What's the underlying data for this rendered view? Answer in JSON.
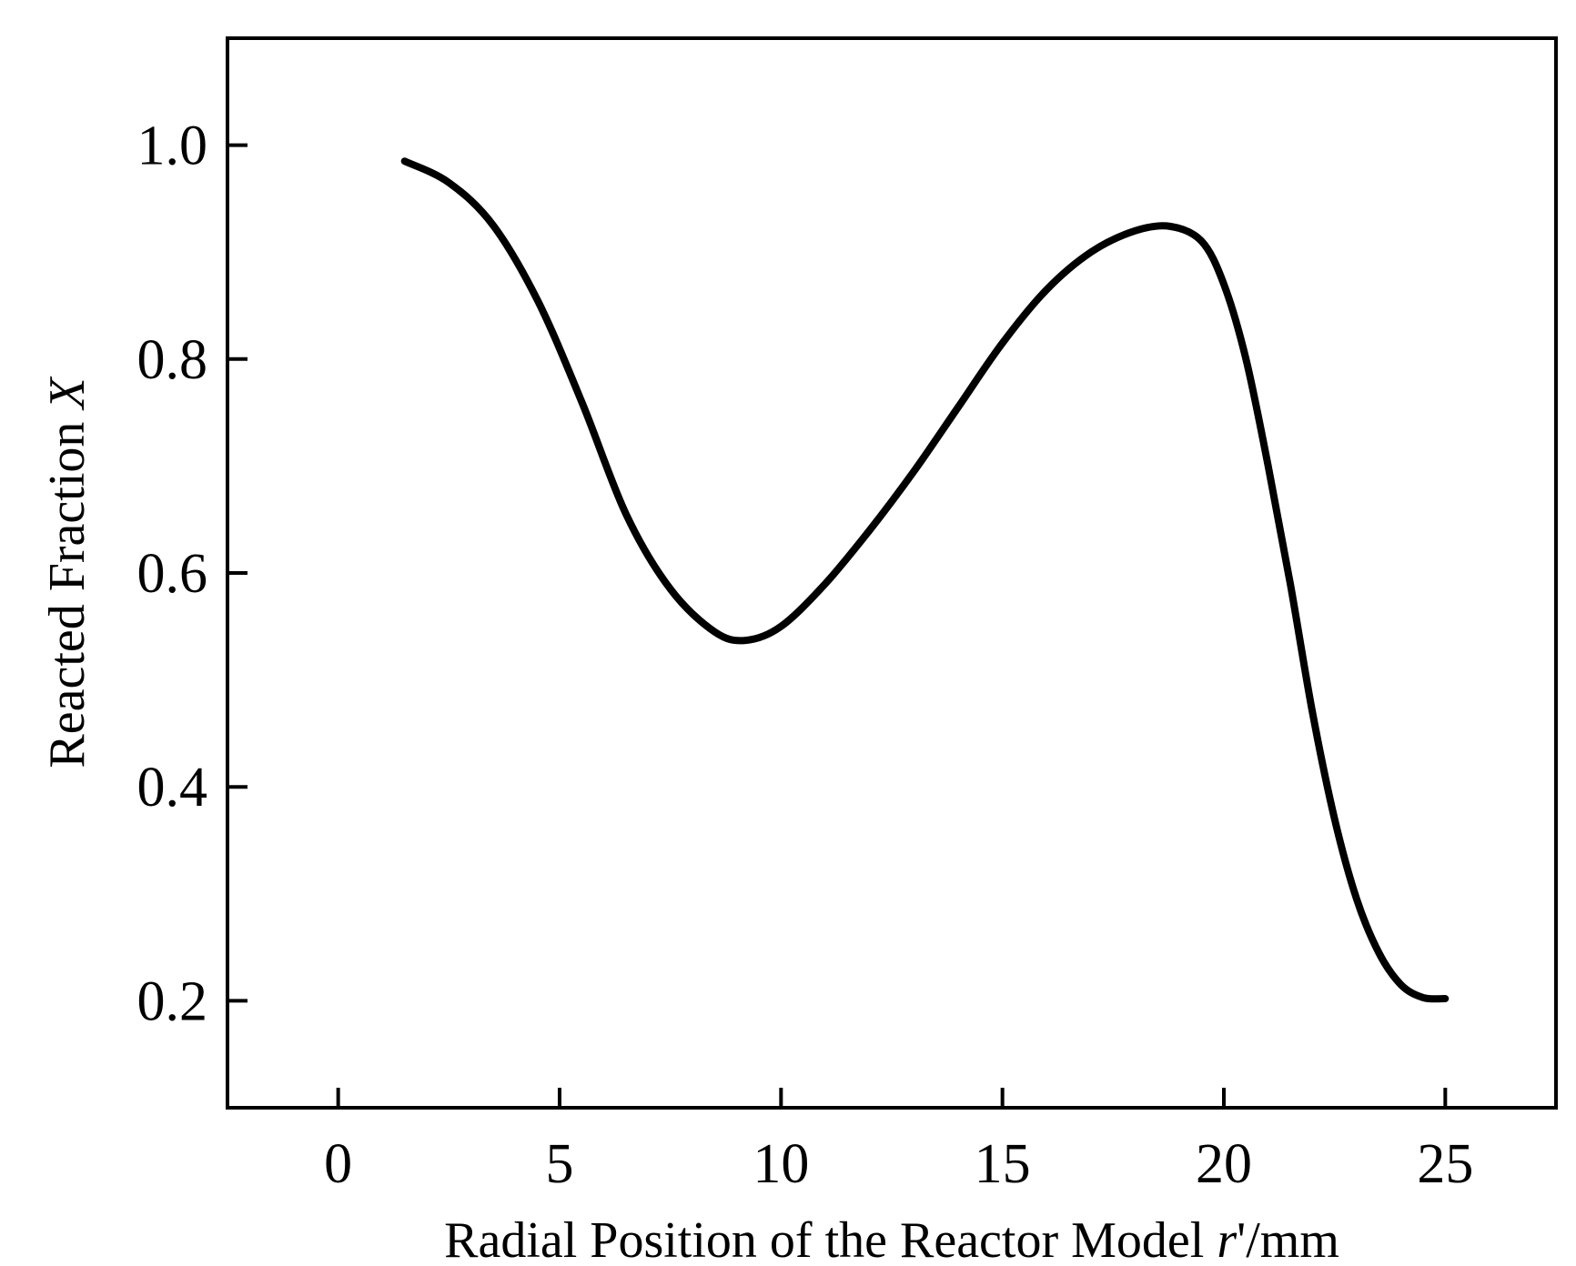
{
  "chart_data": {
    "type": "line",
    "title": "",
    "xlabel": {
      "text": "Radial Position of the Reactor Model ",
      "var": "r",
      "suffix": "'/mm"
    },
    "ylabel": {
      "text": "Reacted Fraction ",
      "var": "X"
    },
    "xlim": [
      -2.5,
      27.5
    ],
    "ylim": [
      0.1,
      1.1
    ],
    "x_ticks": [
      0,
      5,
      10,
      15,
      20,
      25
    ],
    "x_tick_labels": [
      "0",
      "5",
      "10",
      "15",
      "20",
      "25"
    ],
    "y_ticks": [
      0.2,
      0.4,
      0.6,
      0.8,
      1.0
    ],
    "y_tick_labels": [
      "0.2",
      "0.4",
      "0.6",
      "0.8",
      "1.0"
    ],
    "grid": false,
    "line_color": "#000000",
    "series": [
      {
        "x": [
          1.5,
          2.5,
          3.5,
          4.5,
          5.5,
          6.5,
          7.5,
          8.5,
          9.2,
          10.0,
          11.0,
          12.0,
          13.0,
          14.0,
          15.0,
          16.0,
          17.0,
          18.0,
          18.8,
          19.5,
          20.0,
          20.5,
          21.0,
          21.5,
          22.0,
          22.5,
          23.0,
          23.5,
          24.0,
          24.5,
          25.0
        ],
        "y": [
          0.985,
          0.965,
          0.925,
          0.855,
          0.76,
          0.655,
          0.585,
          0.545,
          0.537,
          0.55,
          0.59,
          0.64,
          0.695,
          0.755,
          0.815,
          0.865,
          0.9,
          0.92,
          0.924,
          0.91,
          0.87,
          0.8,
          0.7,
          0.59,
          0.47,
          0.37,
          0.295,
          0.245,
          0.215,
          0.203,
          0.202
        ]
      }
    ]
  }
}
